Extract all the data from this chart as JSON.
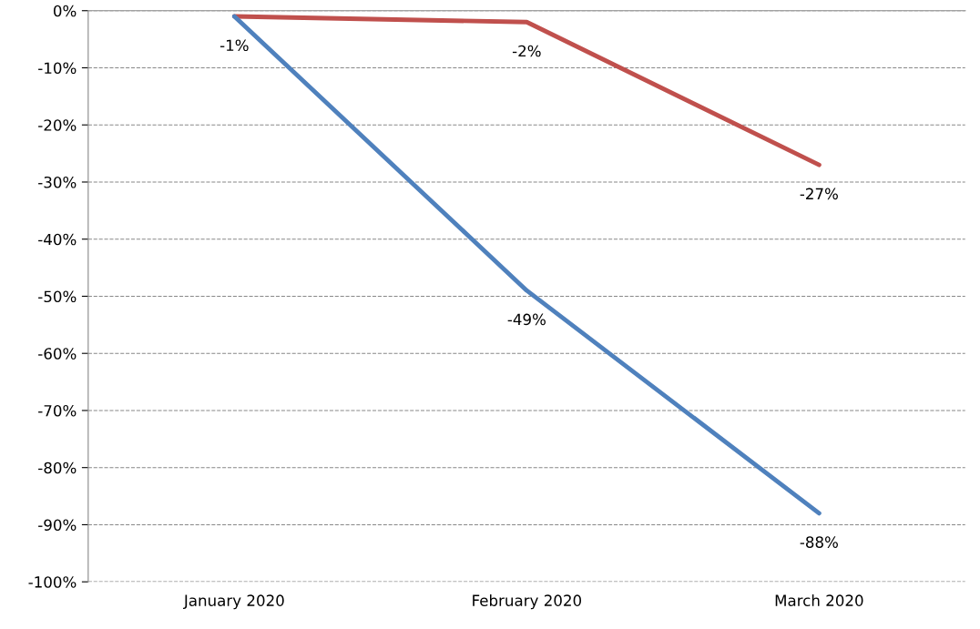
{
  "chart_data": {
    "type": "line",
    "categories": [
      "January 2020",
      "February 2020",
      "March 2020"
    ],
    "series": [
      {
        "color": "#c0504d",
        "values": [
          -1,
          -2,
          -27
        ],
        "value_labels": [
          null,
          "-2%",
          "-27%"
        ]
      },
      {
        "color": "#4f81bd",
        "values": [
          -1,
          -49,
          -88
        ],
        "value_labels": [
          "-1%",
          "-49%",
          "-88%"
        ]
      }
    ],
    "ylim": [
      -100,
      0
    ],
    "yticks": [
      {
        "value": -100,
        "label": "-100%"
      },
      {
        "value": -90,
        "label": "-90%"
      },
      {
        "value": -80,
        "label": "-80%"
      },
      {
        "value": -70,
        "label": "-70%"
      },
      {
        "value": -60,
        "label": "-60%"
      },
      {
        "value": -50,
        "label": "-50%"
      },
      {
        "value": -40,
        "label": "-40%"
      },
      {
        "value": -30,
        "label": "-30%"
      },
      {
        "value": -20,
        "label": "-20%"
      },
      {
        "value": -10,
        "label": "-10%"
      },
      {
        "value": 0,
        "label": "0%"
      }
    ],
    "grid": "y",
    "legend": false,
    "marker": "none",
    "line_style": "solid"
  }
}
